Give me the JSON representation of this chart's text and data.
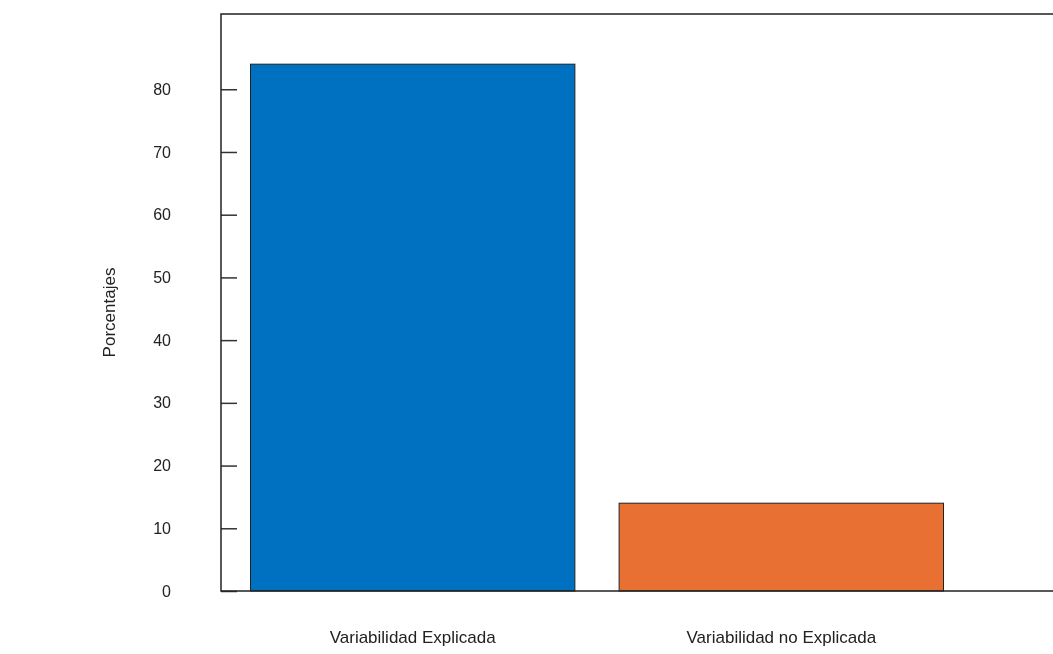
{
  "chart_data": {
    "type": "bar",
    "ylabel": "Porcentajes",
    "categories": [
      "Variabilidad Explicada",
      "Variabilidad no Explicada"
    ],
    "values": [
      84,
      14
    ],
    "colors": [
      "#0070c0",
      "#e87033"
    ],
    "ylim": [
      0,
      92
    ],
    "yticks": [
      0,
      10,
      20,
      30,
      40,
      50,
      60,
      70,
      80
    ],
    "grid": false
  }
}
